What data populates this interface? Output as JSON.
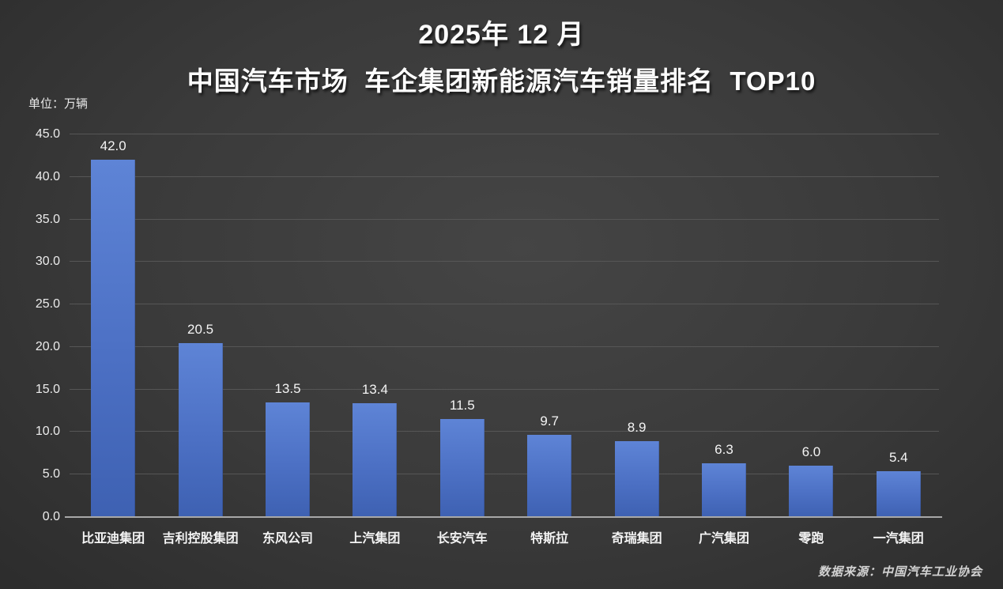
{
  "title": {
    "line1": "2025年 12 月",
    "line2": "中国汽车市场  车企集团新能源汽车销量排名  TOP10"
  },
  "unit_label": "单位：万辆",
  "source": "数据来源：中国汽车工业协会",
  "colors": {
    "background_center": "#454545",
    "background_edge": "#2d2d2d",
    "bar_gradient_top": "#5e84d6",
    "bar_gradient_bottom": "#3e61b2",
    "gridline": "#565656",
    "axis_line": "#a8a8a8",
    "text": "#f2f2f2"
  },
  "chart_data": {
    "type": "bar",
    "title": "2025年 12 月 中国汽车市场 车企集团新能源汽车销量排名 TOP10",
    "categories": [
      "比亚迪集团",
      "吉利控股集团",
      "东风公司",
      "上汽集团",
      "长安汽车",
      "特斯拉",
      "奇瑞集团",
      "广汽集团",
      "零跑",
      "一汽集团"
    ],
    "values": [
      42.0,
      20.5,
      13.5,
      13.4,
      11.5,
      9.7,
      8.9,
      6.3,
      6.0,
      5.4
    ],
    "xlabel": "",
    "ylabel": "单位：万辆",
    "ylim": [
      0,
      45
    ],
    "ytick_step": 5,
    "ytick_decimals": 1,
    "grid": true,
    "legend": false,
    "value_labels": true
  }
}
